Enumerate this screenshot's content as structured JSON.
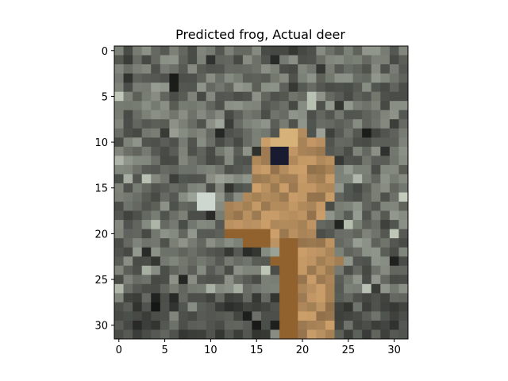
{
  "figure": {
    "title": "Predicted frog, Actual deer",
    "image_content": "low-resolution 32x32 photo: tan/brown deer head and neck facing left with a dark eye, against grey-green foliage",
    "x_axis": {
      "ticks": [
        "0",
        "5",
        "10",
        "15",
        "20",
        "25",
        "30"
      ]
    },
    "y_axis": {
      "ticks": [
        "0",
        "5",
        "10",
        "15",
        "20",
        "25",
        "30"
      ]
    },
    "image_size": {
      "width": 32,
      "height": 32
    },
    "colors": {
      "background": "#ffffff",
      "foliage_grey": "#6f7468",
      "deer_tan": "#b58c5a",
      "deer_brown": "#8a5e2e",
      "eye": "#1a1d2e"
    }
  }
}
